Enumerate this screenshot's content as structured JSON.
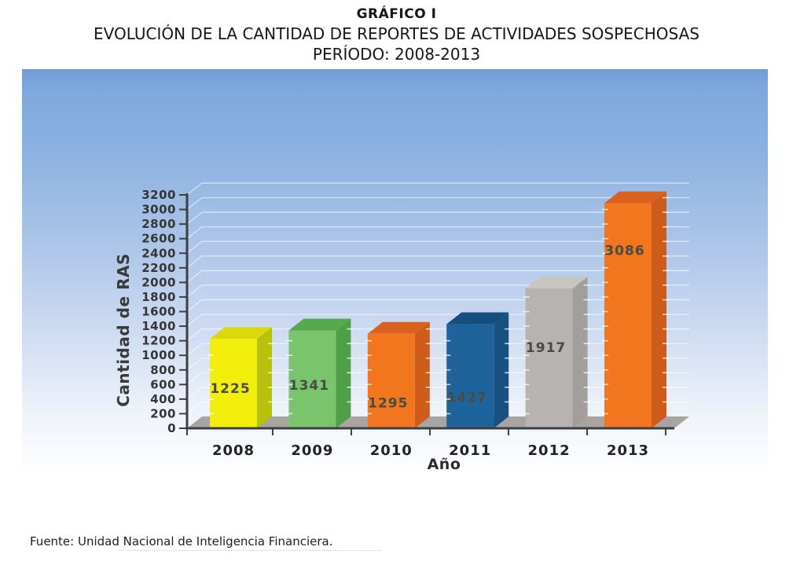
{
  "header": {
    "title": "GRÁFICO I",
    "subtitle": "EVOLUCIÓN DE LA CANTIDAD DE REPORTES DE ACTIVIDADES SOSPECHOSAS",
    "period": "PERÍODO: 2008-2013"
  },
  "footer": {
    "source": "Fuente: Unidad Nacional de Inteligencia Financiera."
  },
  "chart_data": {
    "type": "bar",
    "projection": "3d",
    "title": "GRÁFICO I",
    "subtitle": "EVOLUCIÓN DE LA CANTIDAD DE REPORTES DE ACTIVIDADES SOSPECHOSAS PERÍODO: 2008-2013",
    "categories": [
      "2008",
      "2009",
      "2010",
      "2011",
      "2012",
      "2013"
    ],
    "values": [
      1225,
      1341,
      1295,
      1427,
      1917,
      3086
    ],
    "xlabel": "Año",
    "ylabel": "Cantidad de RAS",
    "ylim": [
      0,
      3200
    ],
    "ytick_step": 200,
    "grid": true,
    "legend": false,
    "colors": {
      "series": [
        {
          "front": "#f2ef0d",
          "top": "#dcd90a",
          "side": "#b8c10e"
        },
        {
          "front": "#79c46c",
          "top": "#57a94d",
          "side": "#4f9f47"
        },
        {
          "front": "#f1761d",
          "top": "#db621e",
          "side": "#cd5b1b"
        },
        {
          "front": "#1e639c",
          "top": "#164e7e",
          "side": "#17517f"
        },
        {
          "front": "#b6b3b0",
          "top": "#c7c4c1",
          "side": "#a19e9b"
        },
        {
          "front": "#f1761d",
          "top": "#db621e",
          "side": "#cd5b1b"
        }
      ],
      "background_top": "#7da8dd",
      "background_bottom": "#ffffff",
      "axis": "#3f3f3f",
      "floor": "#a7a4a1",
      "gridline": "rgba(255,255,255,0.55)",
      "value_label": "#4a4a42",
      "tick_label": "#353535",
      "category_label": "#232323"
    }
  }
}
